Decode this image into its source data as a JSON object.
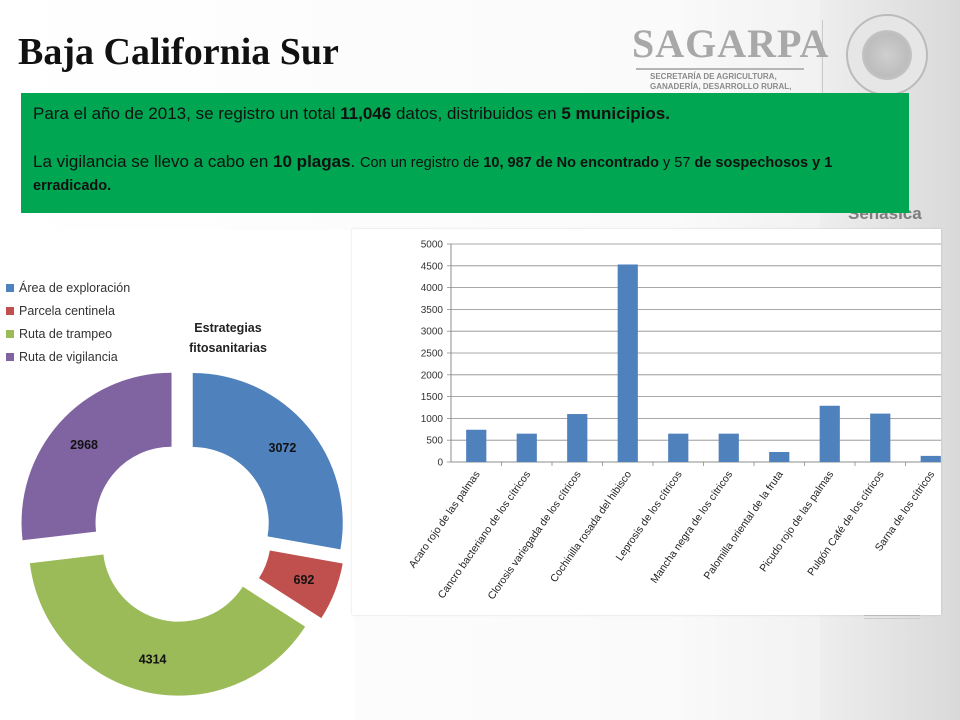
{
  "header": {
    "title": "Baja California Sur",
    "logo_name": "SAGARPA",
    "logo_subtitle_lines": [
      "SECRETARÍA DE AGRICULTURA,",
      "GANADERÍA, DESARROLLO RURAL,"
    ],
    "side_logo": "Senasica"
  },
  "info": {
    "l1_a": "Para el año de 2013,  se registro un total ",
    "l1_b": "11,046",
    "l1_c": " datos, distribuidos en ",
    "l1_d": " 5 municipios.",
    "l2_a": "La vigilancia se llevo a cabo en ",
    "l2_b": "10 plagas",
    "l2_c": ". ",
    "l2_d": "Con un registro de ",
    "l2_e": "10, 987 de No encontrado",
    "l2_f": " y 57 ",
    "l2_g": "de sospechosos y 1 erradicado."
  },
  "colors": {
    "green_box": "#00a651",
    "blue": "#4f81bd",
    "red": "#c0504d",
    "green": "#9bbb59",
    "purple": "#8064a2"
  },
  "chart_data": [
    {
      "type": "pie",
      "variant": "donut-exploded",
      "title": "Estrategias fitosanitarias",
      "legend_position": "top-left",
      "series": [
        {
          "name": "Área de  exploración",
          "value": 3072,
          "color": "#4f81bd"
        },
        {
          "name": "Parcela centinela",
          "value": 692,
          "color": "#c0504d"
        },
        {
          "name": "Ruta de trampeo",
          "value": 4314,
          "color": "#9bbb59"
        },
        {
          "name": "Ruta de vigilancia",
          "value": 2968,
          "color": "#8064a2"
        }
      ]
    },
    {
      "type": "bar",
      "categories": [
        "Acaro rojo de las palmas",
        "Cancro bacteriano de los cítricos",
        "Clorosis variegada de los cítricos",
        "Cochinilla rosada del hibisco",
        "Leprosis de los cítricos",
        "Mancha negra de los cítricos",
        "Palomilla oriental de la fruta",
        "Picudo rojo de las palmas",
        "Pulgón Café de los cítricos",
        "Sarna de los cítricos"
      ],
      "values": [
        740,
        650,
        1100,
        4530,
        650,
        650,
        230,
        1290,
        1110,
        140
      ],
      "ylim": [
        0,
        5000
      ],
      "yticks": [
        0,
        500,
        1000,
        1500,
        2000,
        2500,
        3000,
        3500,
        4000,
        4500,
        5000
      ],
      "grid": true,
      "color": "#4f81bd"
    }
  ]
}
